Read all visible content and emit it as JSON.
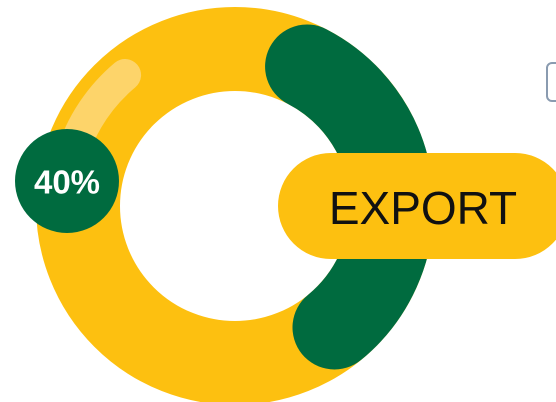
{
  "chart_data": {
    "type": "donut",
    "title": "",
    "slices": [
      {
        "label": "40%",
        "value": 40,
        "color": "#006b3f"
      },
      {
        "label": "",
        "value": 60,
        "color": "#fdc010"
      }
    ],
    "highlight_color": "#fdd46a",
    "callout": {
      "text": "EXPORT",
      "color": "#fdc010"
    },
    "badge": {
      "text": "40%",
      "color": "#006b3f"
    }
  }
}
